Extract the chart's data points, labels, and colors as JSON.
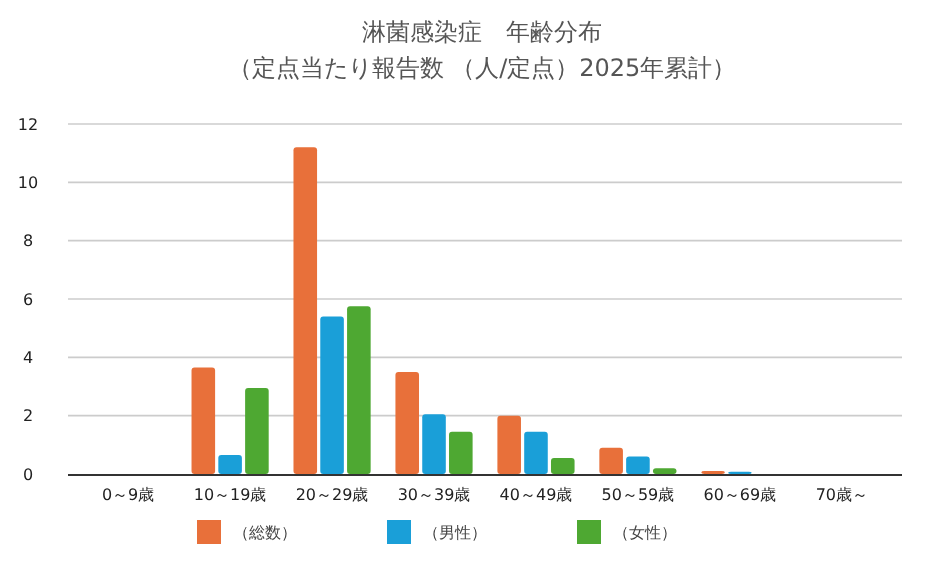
{
  "chart_data": {
    "type": "bar",
    "title": "淋菌感染症　年齢分布",
    "subtitle": "（定点当たり報告数 （人/定点）2025年累計）",
    "categories": [
      "0～9歳",
      "10～19歳",
      "20～29歳",
      "30～39歳",
      "40～49歳",
      "50～59歳",
      "60～69歳",
      "70歳～"
    ],
    "series": [
      {
        "name": "（総数）",
        "color": "#e8703a",
        "values": [
          0,
          3.65,
          11.2,
          3.5,
          2.0,
          0.9,
          0.1,
          0
        ]
      },
      {
        "name": "（男性）",
        "color": "#1a9fd8",
        "values": [
          0,
          0.65,
          5.4,
          2.05,
          1.45,
          0.6,
          0.08,
          0
        ]
      },
      {
        "name": "（女性）",
        "color": "#4ea832",
        "values": [
          0,
          2.95,
          5.75,
          1.45,
          0.55,
          0.2,
          0,
          0
        ]
      }
    ],
    "ylim": [
      0,
      12
    ],
    "yticks": [
      0,
      2,
      4,
      6,
      8,
      10,
      12
    ],
    "grid": "y",
    "legend": "bottom"
  }
}
